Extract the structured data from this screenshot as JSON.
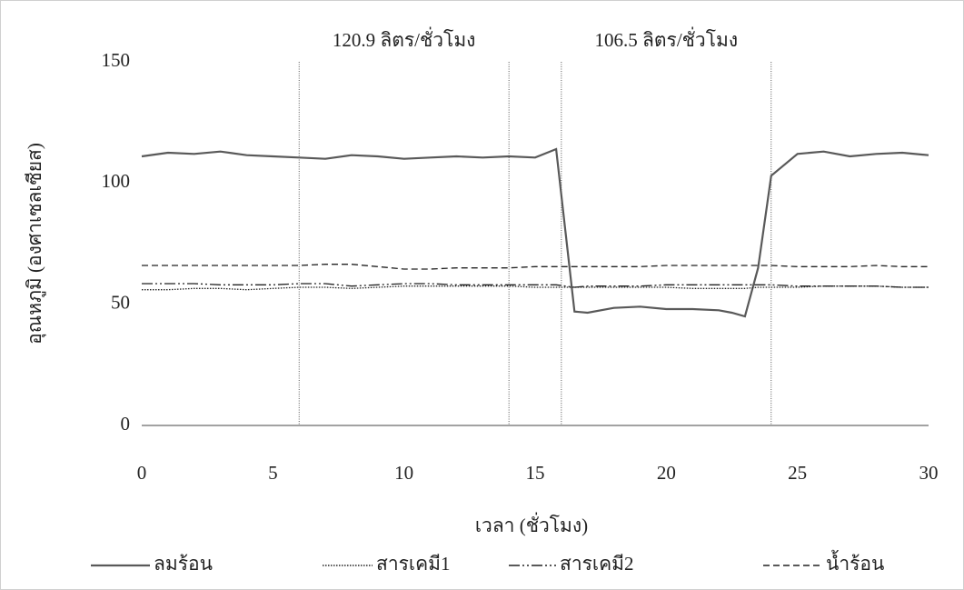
{
  "chart_data": {
    "type": "line",
    "x_label": "เวลา (ชั่วโมง)",
    "y_label": "อุณหภูมิ (องศาเซลเซียส)",
    "annotations": [
      "120.9 ลิตร/ชั่วโมง",
      "106.5 ลิตร/ชั่วโมง"
    ],
    "vlines": [
      6,
      14,
      16,
      24
    ],
    "x": [
      0,
      1,
      2,
      3,
      4,
      5,
      6,
      7,
      8,
      9,
      10,
      11,
      12,
      13,
      14,
      15,
      15.8,
      16.5,
      17,
      18,
      19,
      20,
      21,
      22,
      22.5,
      23,
      23.5,
      24,
      25,
      26,
      27,
      28,
      29,
      30
    ],
    "series": [
      {
        "name": "ลมร้อน",
        "color": "#595959",
        "dash": "solid",
        "values": [
          111,
          112.5,
          112,
          113,
          111.5,
          111,
          110.5,
          110,
          111.5,
          111,
          110,
          110.5,
          111,
          110.5,
          111,
          110.5,
          114,
          47,
          46.5,
          48.5,
          49,
          48,
          48,
          47.5,
          46.5,
          45,
          65,
          103,
          112,
          113,
          111,
          112,
          112.5,
          111.5
        ]
      },
      {
        "name": "สารเคมี1",
        "color": "#222222",
        "dash": "dot",
        "values": [
          56,
          56,
          56.5,
          56.5,
          56,
          56.5,
          57,
          57,
          56.5,
          57,
          57.5,
          57.5,
          57.5,
          57.5,
          57.5,
          57,
          57,
          57,
          57,
          57,
          57,
          57,
          56.5,
          56.5,
          56.5,
          56.5,
          57,
          57,
          57,
          57.5,
          57.5,
          57.5,
          57,
          57
        ]
      },
      {
        "name": "สารเคมี2",
        "color": "#222222",
        "dash": "dashdot",
        "values": [
          58.5,
          58.5,
          58.5,
          58,
          58,
          58,
          58.5,
          58.5,
          57.5,
          58,
          58.5,
          58.5,
          58,
          58,
          58,
          58,
          58,
          57,
          57.5,
          57.5,
          57.5,
          58,
          58,
          58,
          58,
          58,
          58,
          58,
          57.5,
          57.5,
          57.5,
          57.5,
          57,
          57
        ]
      },
      {
        "name": "น้ำร้อน",
        "color": "#222222",
        "dash": "dash",
        "values": [
          66,
          66,
          66,
          66,
          66,
          66,
          66,
          66.5,
          66.5,
          65.5,
          64.5,
          64.5,
          65,
          65,
          65,
          65.5,
          65.5,
          65.5,
          65.5,
          65.5,
          65.5,
          66,
          66,
          66,
          66,
          66,
          66,
          66,
          65.5,
          65.5,
          65.5,
          66,
          65.5,
          65.5
        ]
      }
    ],
    "xlim": [
      0,
      30
    ],
    "xticks": [
      0,
      5,
      10,
      15,
      20,
      25,
      30
    ],
    "ylim": [
      0,
      150
    ],
    "yticks": [
      0,
      50,
      100,
      150
    ]
  }
}
